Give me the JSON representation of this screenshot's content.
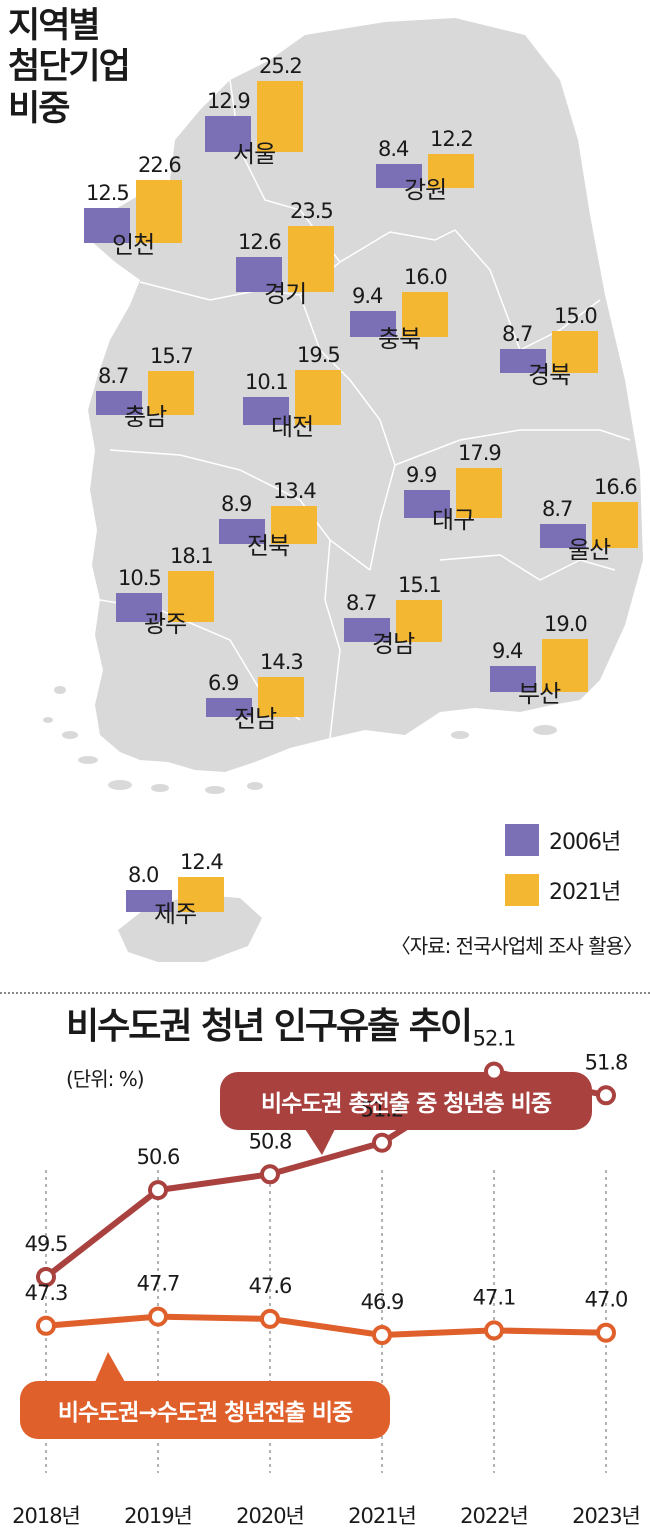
{
  "map_chart": {
    "title_lines": [
      "지역별",
      "첨단기업",
      "비중"
    ],
    "legend": [
      {
        "label": "2006년",
        "color": "#7b6fb6"
      },
      {
        "label": "2021년",
        "color": "#f4b731"
      }
    ],
    "source": "〈자료: 전국사업체 조사 활용〉"
  },
  "line_chart": {
    "title": "비수도권 청년 인구유출 추이",
    "unit": "(단위: %)",
    "callout_top": "비수도권 총전출 중 청년층 비중",
    "callout_bottom": "비수도권→수도권 청년전출 비중"
  },
  "chart_data": [
    {
      "type": "bar",
      "title": "지역별 첨단기업 비중",
      "categories": [
        "서울",
        "인천",
        "강원",
        "경기",
        "충북",
        "경북",
        "충남",
        "대전",
        "대구",
        "울산",
        "전북",
        "광주",
        "경남",
        "부산",
        "전남",
        "제주"
      ],
      "series": [
        {
          "name": "2006년",
          "color": "#7b6fb6",
          "values": [
            12.9,
            12.5,
            8.4,
            12.6,
            9.4,
            8.7,
            8.7,
            10.1,
            9.9,
            8.7,
            8.9,
            10.5,
            8.7,
            9.4,
            6.9,
            8.0
          ]
        },
        {
          "name": "2021년",
          "color": "#f4b731",
          "values": [
            25.2,
            22.6,
            12.2,
            23.5,
            16.0,
            15.0,
            15.7,
            19.5,
            17.9,
            16.6,
            13.4,
            18.1,
            15.1,
            19.0,
            14.3,
            12.4
          ]
        }
      ]
    },
    {
      "type": "line",
      "title": "비수도권 청년 인구유출 추이",
      "categories": [
        "2018년",
        "2019년",
        "2020년",
        "2021년",
        "2022년",
        "2023년"
      ],
      "series": [
        {
          "name": "비수도권 총전출 중 청년층 비중",
          "color": "#a9413f",
          "values": [
            49.5,
            50.6,
            50.8,
            51.2,
            52.1,
            51.8
          ]
        },
        {
          "name": "비수도권→수도권 청년전출 비중",
          "color": "#e0602c",
          "values": [
            47.3,
            47.7,
            47.6,
            46.9,
            47.1,
            47.0
          ]
        }
      ]
    }
  ]
}
